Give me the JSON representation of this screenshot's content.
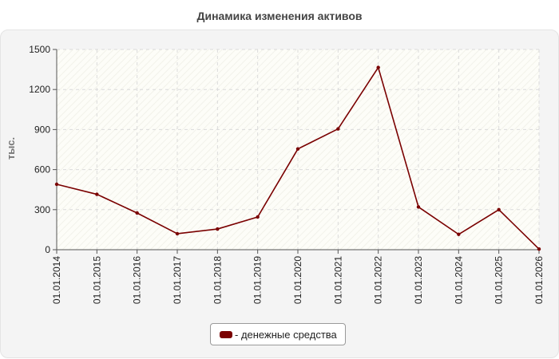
{
  "chart_data": {
    "type": "line",
    "title": "Динамика изменения активов",
    "ylabel": "тыс.",
    "xlabel": "",
    "x": [
      "01.01.2014",
      "01.01.2015",
      "01.01.2016",
      "01.01.2017",
      "01.01.2018",
      "01.01.2019",
      "01.01.2020",
      "01.01.2021",
      "01.01.2022",
      "01.01.2023",
      "01.01.2024",
      "01.01.2025",
      "01.01.2026"
    ],
    "ylim": [
      0,
      1500
    ],
    "yticks": [
      0,
      300,
      600,
      900,
      1200,
      1500
    ],
    "grid": true,
    "legend_position": "bottom-center",
    "series": [
      {
        "name": "- денежные средства",
        "color": "#7a0000",
        "values": [
          490,
          415,
          275,
          120,
          155,
          245,
          755,
          905,
          1365,
          320,
          115,
          300,
          5
        ]
      }
    ]
  }
}
